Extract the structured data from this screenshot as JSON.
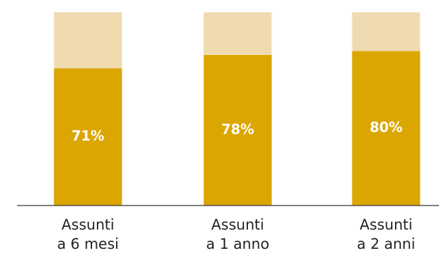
{
  "chart_data": {
    "type": "stacked_bar",
    "categories": [
      "Assunti\na 6 mesi",
      "Assunti\na 1 anno",
      "Assunti\na 2 anni"
    ],
    "series": [
      {
        "color": "#dba600",
        "values": [
          71,
          78,
          80
        ],
        "value_labels": [
          "71%",
          "78%",
          "80%"
        ]
      },
      {
        "color": "#f0dbb0",
        "values": [
          29,
          22,
          20
        ]
      }
    ],
    "ylim": [
      0,
      100
    ]
  }
}
